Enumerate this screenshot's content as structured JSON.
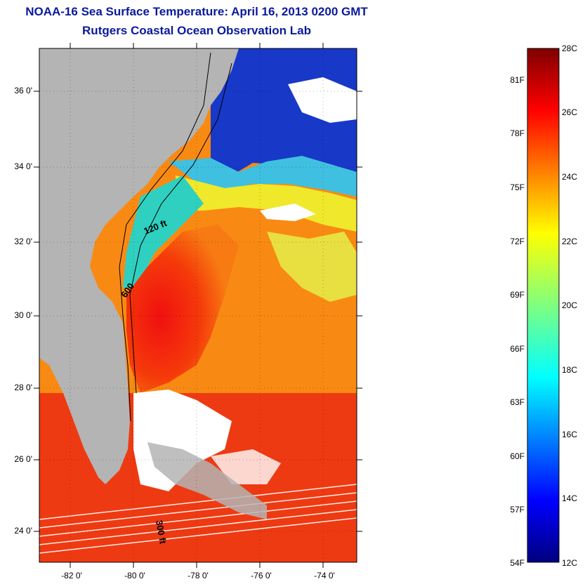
{
  "title": "NOAA-16 Sea Surface Temperature:  April 16, 2013 0200 GMT",
  "subtitle": "Rutgers Coastal Ocean Observation Lab",
  "lat_ticks": [
    "36 0'",
    "34 0'",
    "32 0'",
    "30 0'",
    "28 0'",
    "26 0'",
    "24 0'"
  ],
  "lon_ticks": [
    "-82 0'",
    "-80 0'",
    "-78 0'",
    "-76 0'",
    "-74 0'"
  ],
  "contour_labels": {
    "c120": "120 ft",
    "c600": "600",
    "c300": "300 ft"
  },
  "colorbar": {
    "celsius": [
      "28C",
      "26C",
      "24C",
      "22C",
      "20C",
      "18C",
      "16C",
      "14C",
      "12C"
    ],
    "fahrenheit": [
      "81F",
      "78F",
      "75F",
      "72F",
      "69F",
      "66F",
      "63F",
      "60F",
      "57F",
      "54F"
    ]
  },
  "colors": {
    "title": "#0a1a9c",
    "land": "#b4b4b4",
    "cloud": "#ffffff"
  }
}
